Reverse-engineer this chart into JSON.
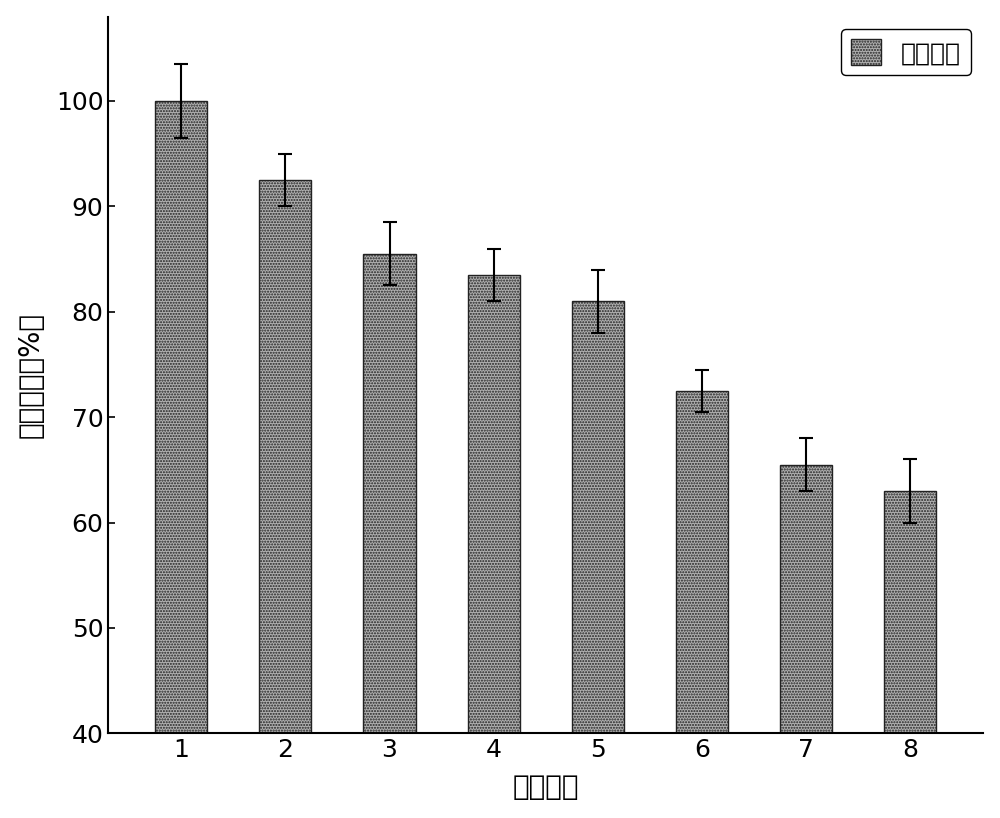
{
  "categories": [
    1,
    2,
    3,
    4,
    5,
    6,
    7,
    8
  ],
  "values": [
    100,
    92.5,
    85.5,
    83.5,
    81.0,
    72.5,
    65.5,
    63.0
  ],
  "errors": [
    3.5,
    2.5,
    3.0,
    2.5,
    3.0,
    2.0,
    2.5,
    3.0
  ],
  "bar_color": "#b0b0b0",
  "bar_edgecolor": "#222222",
  "xlabel": "循环次数",
  "ylabel": "相对酶活（%）",
  "ylim": [
    40,
    108
  ],
  "ymin": 40,
  "yticks": [
    40,
    50,
    60,
    70,
    80,
    90,
    100
  ],
  "legend_label": "固定化酶",
  "background_color": "#ffffff",
  "xlabel_fontsize": 20,
  "ylabel_fontsize": 20,
  "tick_fontsize": 18,
  "legend_fontsize": 18,
  "bar_width": 0.5
}
